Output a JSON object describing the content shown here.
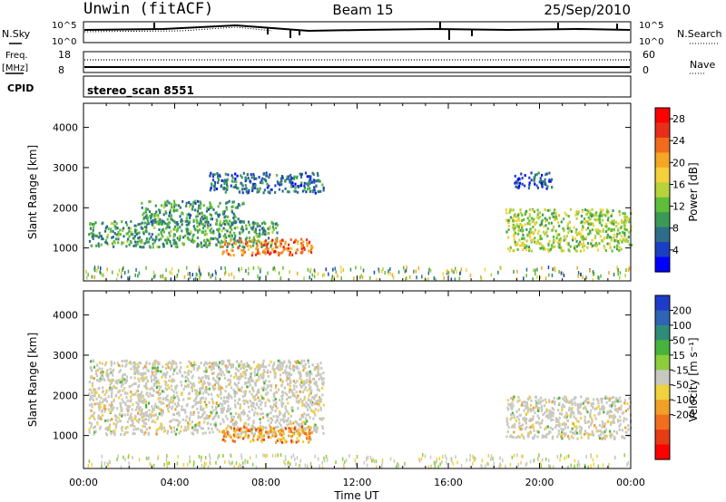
{
  "header": {
    "station": "Unwin (fitACF)",
    "beam": "Beam 15",
    "date": "25/Sep/2010"
  },
  "top_panels": {
    "nsky_label": "N.Sky",
    "nsky_ticks": [
      "10^5",
      "10^0"
    ],
    "nsearch_label": "N.Search",
    "nsearch_ticks": [
      "10^5",
      "10^0"
    ],
    "freq_label_line1": "Freq.",
    "freq_label_line2": "[MHz]",
    "freq_ticks": [
      "18",
      "8"
    ],
    "nave_label": "Nave",
    "nave_ticks": [
      "60",
      "0"
    ],
    "cpid_label": "CPID",
    "cpid_value": "stereo_scan 8551"
  },
  "chart_data": [
    {
      "type": "heatmap",
      "ylabel": "Slant Range [km]",
      "xlabel": "Time UT",
      "x_ticks": [
        "00:00",
        "04:00",
        "08:00",
        "12:00",
        "16:00",
        "20:00",
        "00:00"
      ],
      "xlim_hours": [
        0,
        24
      ],
      "y_ticks": [
        1000,
        2000,
        3000,
        4000
      ],
      "ylim_km": [
        180,
        4600
      ],
      "colorbar": {
        "label": "Power [dB]",
        "ticks": [
          4,
          8,
          12,
          16,
          20,
          24,
          28
        ],
        "range": [
          0,
          30
        ],
        "colors": [
          "#0000ff",
          "#1b3fc4",
          "#2e6e8a",
          "#3a9a55",
          "#5fbd3a",
          "#b8d23c",
          "#f4d03a",
          "#f5a623",
          "#f26b1d",
          "#e82e1a",
          "#ff0000"
        ]
      },
      "regions": [
        {
          "t0": 0.2,
          "t1": 8.5,
          "r0": 1050,
          "r1": 1700,
          "level": 10
        },
        {
          "t0": 2.5,
          "t1": 7.0,
          "r0": 1600,
          "r1": 2200,
          "level": 9
        },
        {
          "t0": 5.5,
          "t1": 10.5,
          "r0": 2400,
          "r1": 2900,
          "level": 6
        },
        {
          "t0": 6.0,
          "t1": 10.0,
          "r0": 850,
          "r1": 1250,
          "level": 24
        },
        {
          "t0": 18.5,
          "t1": 24.0,
          "r0": 950,
          "r1": 2000,
          "level": 14
        },
        {
          "t0": 18.8,
          "t1": 20.5,
          "r0": 2500,
          "r1": 2900,
          "level": 4
        }
      ]
    },
    {
      "type": "heatmap",
      "ylabel": "Slant Range [km]",
      "xlabel": "Time UT",
      "x_ticks": [
        "00:00",
        "04:00",
        "08:00",
        "12:00",
        "16:00",
        "20:00",
        "00:00"
      ],
      "xlim_hours": [
        0,
        24
      ],
      "y_ticks": [
        1000,
        2000,
        3000,
        4000
      ],
      "ylim_km": [
        180,
        4600
      ],
      "colorbar": {
        "label": "Velocity [m s⁻¹]",
        "ticks": [
          "200",
          "100",
          "50",
          "15",
          "-15",
          "-50",
          "-100",
          "-200"
        ],
        "colors": [
          "#1e3cc8",
          "#2e64b4",
          "#2e8c78",
          "#46b43c",
          "#8ccd3c",
          "#c8c8c0",
          "#f0d23c",
          "#f0a028",
          "#f06e1e",
          "#e63c14",
          "#ff0000"
        ]
      },
      "regions": [
        {
          "t0": 0.2,
          "t1": 10.5,
          "r0": 1050,
          "r1": 2900,
          "level": "grey"
        },
        {
          "t0": 6.0,
          "t1": 10.0,
          "r0": 850,
          "r1": 1250,
          "level": "orange"
        },
        {
          "t0": 18.5,
          "t1": 24.0,
          "r0": 950,
          "r1": 2000,
          "level": "grey"
        }
      ]
    }
  ]
}
